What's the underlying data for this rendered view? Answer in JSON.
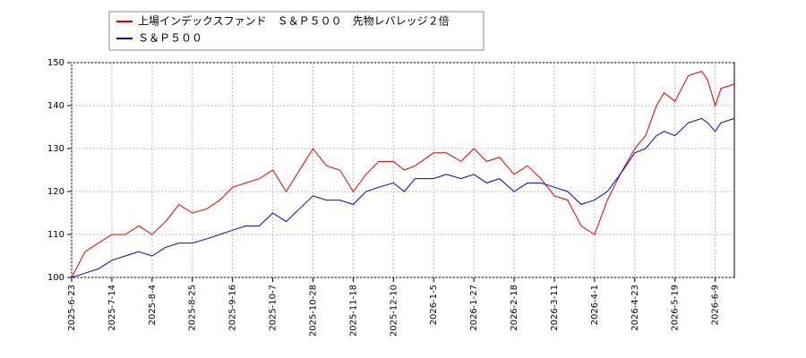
{
  "chart_data": {
    "type": "line",
    "x": [
      "2025-6-23",
      "2025-6-30",
      "2025-7-7",
      "2025-7-14",
      "2025-7-21",
      "2025-7-28",
      "2025-8-4",
      "2025-8-11",
      "2025-8-18",
      "2025-8-25",
      "2025-9-2",
      "2025-9-9",
      "2025-9-16",
      "2025-9-23",
      "2025-9-30",
      "2025-10-7",
      "2025-10-14",
      "2025-10-21",
      "2025-10-28",
      "2025-11-4",
      "2025-11-11",
      "2025-11-18",
      "2025-11-25",
      "2025-12-2",
      "2025-12-10",
      "2025-12-17",
      "2025-12-24",
      "2026-1-5",
      "2026-1-12",
      "2026-1-20",
      "2026-1-27",
      "2026-2-3",
      "2026-2-10",
      "2026-2-18",
      "2026-2-25",
      "2026-3-4",
      "2026-3-11",
      "2026-3-18",
      "2026-3-25",
      "2026-4-1",
      "2026-4-8",
      "2026-4-15",
      "2026-4-23",
      "2026-4-30",
      "2026-5-7",
      "2026-5-12",
      "2026-5-19",
      "2026-5-26",
      "2026-6-2",
      "2026-6-5",
      "2026-6-9",
      "2026-6-12",
      "2026-6-19"
    ],
    "series": [
      {
        "name": "上場インデックスファンド　Ｓ＆Ｐ５００　先物レバレッジ２倍",
        "color": "#dd0000",
        "values": [
          100,
          106,
          108,
          110,
          110,
          112,
          110,
          113,
          117,
          115,
          116,
          118,
          121,
          122,
          123,
          125,
          120,
          125,
          130,
          126,
          125,
          120,
          124,
          127,
          127,
          125,
          126,
          129,
          129,
          127,
          130,
          127,
          128,
          124,
          126,
          123,
          119,
          118,
          112,
          110,
          118,
          124,
          130,
          133,
          140,
          143,
          141,
          147,
          148,
          146,
          140,
          144,
          145
        ]
      },
      {
        "name": "Ｓ＆Ｐ５００",
        "color": "#0000cc",
        "values": [
          100,
          101,
          102,
          104,
          105,
          106,
          105,
          107,
          108,
          108,
          109,
          110,
          111,
          112,
          112,
          115,
          113,
          116,
          119,
          118,
          118,
          117,
          120,
          121,
          122,
          120,
          123,
          123,
          124,
          123,
          124,
          122,
          123,
          120,
          122,
          122,
          121,
          120,
          117,
          118,
          120,
          124,
          129,
          130,
          133,
          134,
          133,
          136,
          137,
          136,
          134,
          136,
          137
        ]
      }
    ],
    "xlim": [
      "2025-6-23",
      "2026-6-19"
    ],
    "xticks": [
      "2025-6-23",
      "2025-7-14",
      "2025-8-4",
      "2025-8-25",
      "2025-9-16",
      "2025-10-7",
      "2025-10-28",
      "2025-11-18",
      "2025-12-10",
      "2026-1-5",
      "2026-1-27",
      "2026-2-18",
      "2026-3-11",
      "2026-4-1",
      "2026-4-23",
      "2026-5-19",
      "2026-6-9"
    ],
    "ylim": [
      100,
      150
    ],
    "yticks": [
      100,
      110,
      120,
      130,
      140,
      150
    ],
    "grid": true
  }
}
